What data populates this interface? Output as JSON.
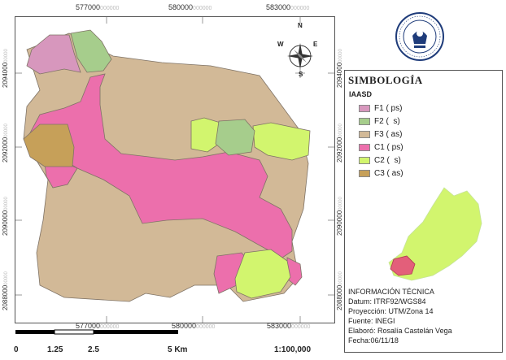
{
  "top_ticks": [
    {
      "main": "577000",
      "dec": "000000"
    },
    {
      "main": "580000",
      "dec": "000000"
    },
    {
      "main": "583000",
      "dec": "000000"
    }
  ],
  "bottom_ticks": [
    {
      "main": "577000",
      "dec": "000000"
    },
    {
      "main": "580000",
      "dec": "000000"
    },
    {
      "main": "583000",
      "dec": "000000"
    }
  ],
  "left_ticks": [
    {
      "main": "2094000",
      "dec": "00000"
    },
    {
      "main": "2092000",
      "dec": "00000"
    },
    {
      "main": "2090000",
      "dec": "00000"
    },
    {
      "main": "2088000",
      "dec": "00000"
    }
  ],
  "right_ticks": [
    {
      "main": "2094000",
      "dec": "00000"
    },
    {
      "main": "2092000",
      "dec": "00000"
    },
    {
      "main": "2090000",
      "dec": "00000"
    },
    {
      "main": "2088000",
      "dec": "00000"
    }
  ],
  "north_arrow": {
    "n": "N",
    "s": "S",
    "e": "E",
    "w": "W"
  },
  "legend": {
    "title": "SIMBOLOGÍA",
    "subtitle": "IAASD",
    "items": [
      {
        "label": "F1 ( ps)",
        "color": "#d797bd"
      },
      {
        "label": "F2 (  s)",
        "color": "#a6cd8c"
      },
      {
        "label": "F3 ( as)",
        "color": "#d2b997"
      },
      {
        "label": "C1 ( ps)",
        "color": "#ec6fac"
      },
      {
        "label": "C2 (  s)",
        "color": "#d2f56e"
      },
      {
        "label": "C3 ( as)",
        "color": "#c6a059"
      }
    ]
  },
  "info": {
    "heading": "INFORMACIÓN TÉCNICA",
    "datum": "Datum: ITRF92/WGS84",
    "projection": "Proyección: UTM/Zona 14",
    "source": "Fuente: INEGI",
    "author": "Elaboró: Rosalía Castelán Vega",
    "date": "Fecha:06/11/18"
  },
  "scale": {
    "labels": [
      "0",
      "1.25",
      "2.5",
      "5 Km"
    ],
    "ratio": "1:100,000"
  },
  "colors": {
    "locator_state": "#d2f56e",
    "locator_area": "#e35f7a"
  }
}
